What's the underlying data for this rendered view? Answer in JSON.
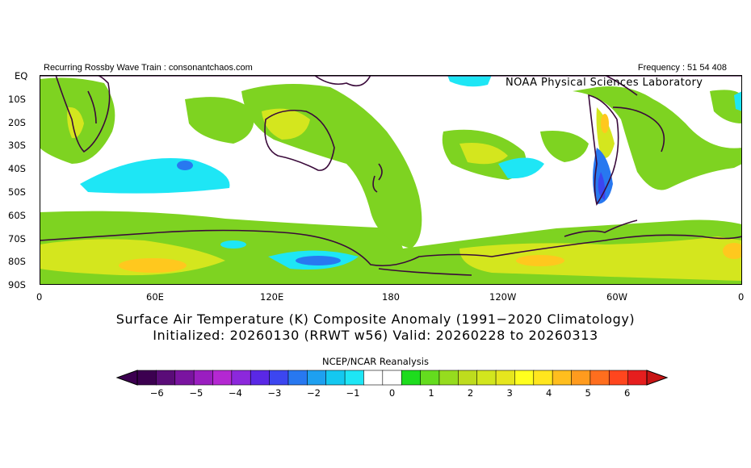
{
  "header": {
    "left_note": "Recurring Rossby Wave Train : consonantchaos.com",
    "right_note": "Frequency : 51 54 408",
    "lab_label": "NOAA Physical Sciences Laboratory"
  },
  "axes": {
    "lat_labels": [
      "EQ",
      "10S",
      "20S",
      "30S",
      "40S",
      "50S",
      "60S",
      "70S",
      "80S",
      "90S"
    ],
    "lon_labels": [
      "0",
      "60E",
      "120E",
      "180",
      "120W",
      "60W",
      "0"
    ]
  },
  "caption": {
    "line1": "Surface Air Temperature (K) Composite Anomaly (1991−2020 Climatology)",
    "line2": "Initialized: 20260130 (RRWT w56) Valid: 20260228 to 20260313"
  },
  "colorbar": {
    "title": "NCEP/NCAR Reanalysis",
    "tick_labels": [
      "−6",
      "−5",
      "−4",
      "−3",
      "−2",
      "−1",
      "0",
      "1",
      "2",
      "3",
      "4",
      "5",
      "6"
    ],
    "colors": [
      "#3c0050",
      "#5a0c78",
      "#7a14a0",
      "#9a1ec0",
      "#b428d2",
      "#8c28dc",
      "#5a28e6",
      "#3c46f0",
      "#2878f0",
      "#1ea0f0",
      "#14c8f0",
      "#1ee6f5",
      "#ffffff",
      "#ffffff",
      "#1edc1e",
      "#64dc1e",
      "#96dc1e",
      "#bedc1e",
      "#d2e61e",
      "#e6e61e",
      "#ffff1e",
      "#ffe61e",
      "#ffbe1e",
      "#ff9b1e",
      "#ff6e1e",
      "#ff461e",
      "#e61e1e"
    ],
    "end_left_color": "#3c0050",
    "end_right_color": "#c81414"
  }
}
